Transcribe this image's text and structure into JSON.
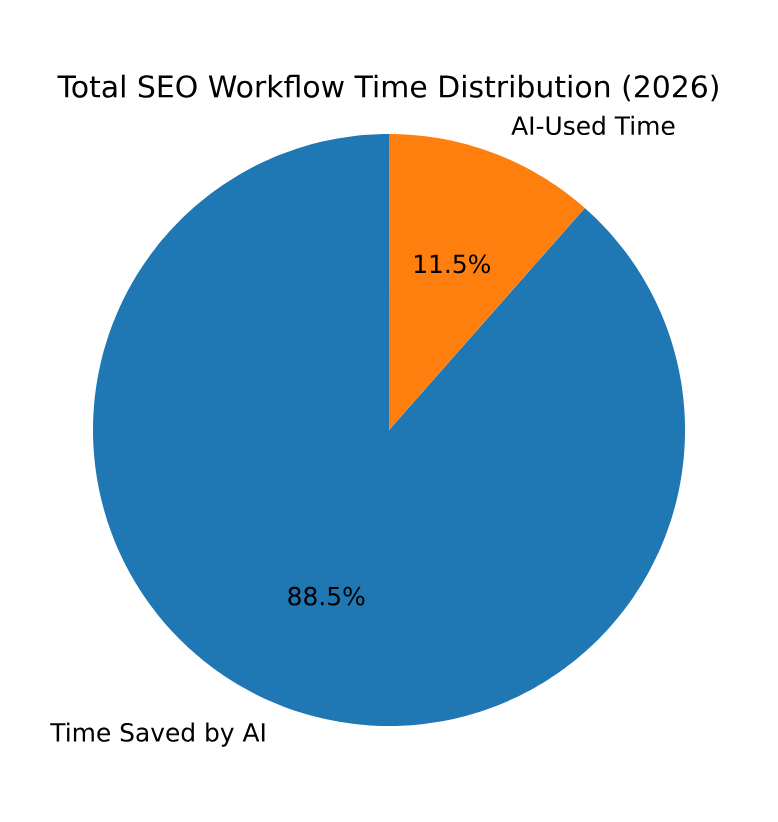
{
  "chart_data": {
    "type": "pie",
    "title": "Total SEO Workflow Time Distribution (2026)",
    "categories": [
      "Time Saved by AI",
      "AI-Used Time"
    ],
    "values": [
      88.5,
      11.5
    ],
    "value_labels": [
      "88.5%",
      "11.5%"
    ],
    "colors": [
      "#1f77b4",
      "#ff7f0e"
    ]
  }
}
